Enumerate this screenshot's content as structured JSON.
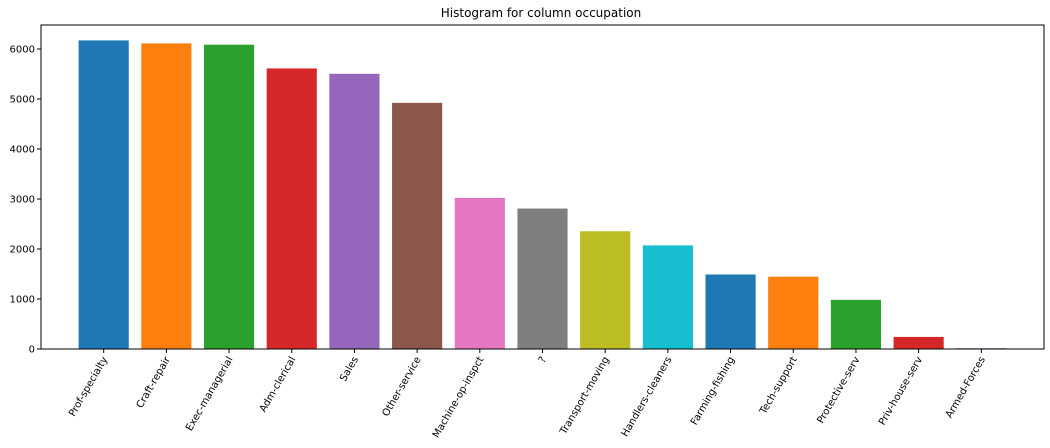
{
  "chart_data": {
    "type": "bar",
    "title": "Histogram for column occupation",
    "xlabel": "",
    "ylabel": "",
    "categories": [
      "Prof-specialty",
      "Craft-repair",
      "Exec-managerial",
      "Adm-clerical",
      "Sales",
      "Other-service",
      "Machine-op-inspct",
      "?",
      "Transport-moving",
      "Handlers-cleaners",
      "Farming-fishing",
      "Tech-support",
      "Protective-serv",
      "Priv-house-serv",
      "Armed-Forces"
    ],
    "values": [
      6172,
      6112,
      6086,
      5611,
      5504,
      4923,
      3022,
      2809,
      2355,
      2072,
      1490,
      1446,
      983,
      242,
      15
    ],
    "colors": [
      "#1f77b4",
      "#ff7f0e",
      "#2ca02c",
      "#d62728",
      "#9467bd",
      "#8c564b",
      "#e377c2",
      "#7f7f7f",
      "#bcbd22",
      "#17becf",
      "#1f77b4",
      "#ff7f0e",
      "#2ca02c",
      "#d62728",
      "#9467bd"
    ],
    "ylim": [
      0,
      6480
    ],
    "yticks": [
      0,
      1000,
      2000,
      3000,
      4000,
      5000,
      6000
    ],
    "grid": false,
    "legend": "none"
  }
}
